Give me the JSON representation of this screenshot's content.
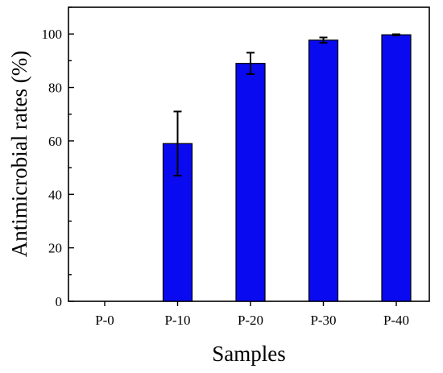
{
  "chart_data": {
    "type": "bar",
    "title": "",
    "xlabel": "Samples",
    "ylabel": "Antimicrobial rates (%)",
    "categories": [
      "P-0",
      "P-10",
      "P-20",
      "P-30",
      "P-40"
    ],
    "values": [
      0,
      59,
      89,
      97.7,
      99.7
    ],
    "errors": [
      0,
      12,
      4,
      1,
      0.2
    ],
    "ylim": [
      0,
      110
    ],
    "yticks": [
      0,
      20,
      40,
      60,
      80,
      100
    ],
    "bar_color": "#0a0af0",
    "grid": false
  }
}
